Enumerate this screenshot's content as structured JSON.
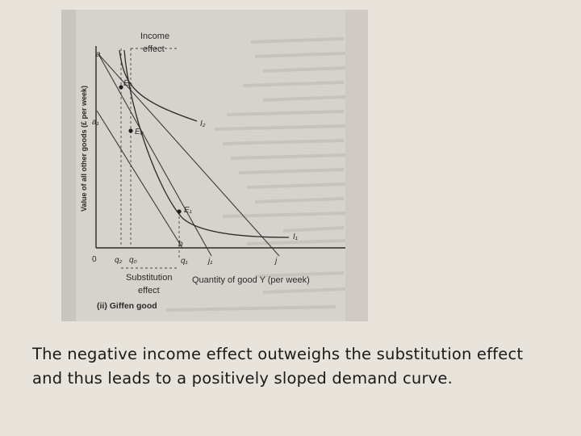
{
  "figure": {
    "annotations": {
      "income_effect_line1": "Income",
      "income_effect_line2": "effect",
      "substitution_effect_line1": "Substitution",
      "substitution_effect_line2": "effect",
      "x_axis_label": "Quantity of good Y (per week)",
      "y_axis_label": "Value of all other goods (£ per week)",
      "panel_label": "(ii) Giffen good"
    },
    "points": {
      "origin": "0",
      "a": "a",
      "a1": "a₁",
      "b": "b",
      "q2": "q₂",
      "q0": "q₀",
      "q1": "q₁",
      "j1": "j₁",
      "j": "j",
      "E0": "E₀",
      "E1": "E₁",
      "E2": "E₂",
      "I1": "I₁",
      "I2": "I₂"
    }
  },
  "caption": "The negative income effect outweighs the substitution effect and thus leads to a positively sloped demand curve."
}
